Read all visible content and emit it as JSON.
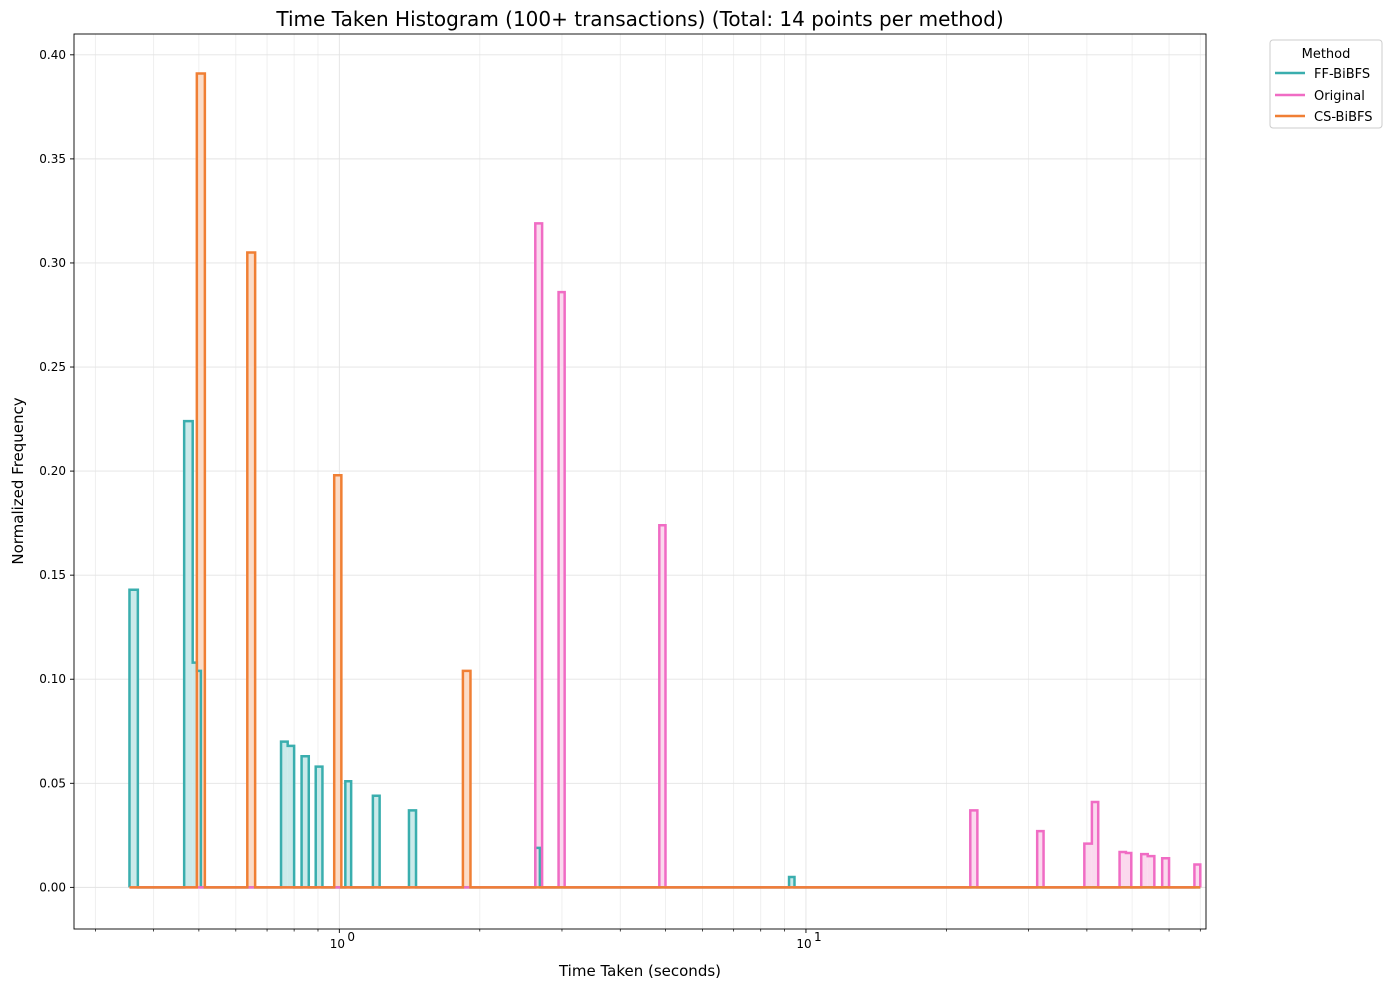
{
  "chart_data": {
    "type": "histogram-step",
    "title": "Time Taken Histogram (100+ transactions) (Total: 14 points per method)",
    "xlabel": "Time Taken (seconds)",
    "ylabel": "Normalized Frequency",
    "xscale": "log",
    "xlim": [
      0.27,
      72
    ],
    "ylim": [
      -0.02,
      0.41
    ],
    "x_ticks": [
      {
        "value": 1,
        "label": "10",
        "sup": "0"
      },
      {
        "value": 10,
        "label": "10",
        "sup": "1"
      }
    ],
    "y_ticks": [
      "0.00",
      "0.05",
      "0.10",
      "0.15",
      "0.20",
      "0.25",
      "0.30",
      "0.35",
      "0.40"
    ],
    "y_tick_values": [
      0,
      0.05,
      0.1,
      0.15,
      0.2,
      0.25,
      0.3,
      0.35,
      0.4
    ],
    "grid": true,
    "legend": {
      "title": "Method",
      "placement": "outside top-right"
    },
    "baseline_range": [
      0.355,
      70
    ],
    "series": [
      {
        "name": "FF-BiBFS",
        "color": "#3aaeae",
        "fill": "#c5e8e8",
        "bars": [
          {
            "x0": 0.355,
            "x1": 0.37,
            "y": 0.143
          },
          {
            "x0": 0.465,
            "x1": 0.485,
            "y": 0.224
          },
          {
            "x0": 0.485,
            "x1": 0.495,
            "y": 0.108
          },
          {
            "x0": 0.495,
            "x1": 0.505,
            "y": 0.104
          },
          {
            "x0": 0.75,
            "x1": 0.775,
            "y": 0.07
          },
          {
            "x0": 0.775,
            "x1": 0.8,
            "y": 0.068
          },
          {
            "x0": 0.83,
            "x1": 0.86,
            "y": 0.063
          },
          {
            "x0": 0.89,
            "x1": 0.92,
            "y": 0.058
          },
          {
            "x0": 1.03,
            "x1": 1.06,
            "y": 0.051
          },
          {
            "x0": 1.18,
            "x1": 1.22,
            "y": 0.044
          },
          {
            "x0": 1.41,
            "x1": 1.46,
            "y": 0.037
          },
          {
            "x0": 2.63,
            "x1": 2.69,
            "y": 0.019
          },
          {
            "x0": 9.2,
            "x1": 9.45,
            "y": 0.005
          }
        ]
      },
      {
        "name": "Original",
        "color": "#f06cc4",
        "fill": "#fbd5ec",
        "bars": [
          {
            "x0": 2.63,
            "x1": 2.72,
            "y": 0.319
          },
          {
            "x0": 2.95,
            "x1": 3.04,
            "y": 0.286
          },
          {
            "x0": 4.85,
            "x1": 5.0,
            "y": 0.174
          },
          {
            "x0": 22.5,
            "x1": 23.3,
            "y": 0.037
          },
          {
            "x0": 31.3,
            "x1": 32.3,
            "y": 0.027
          },
          {
            "x0": 39.5,
            "x1": 41.0,
            "y": 0.021
          },
          {
            "x0": 41.0,
            "x1": 42.3,
            "y": 0.041
          },
          {
            "x0": 47.0,
            "x1": 48.5,
            "y": 0.017
          },
          {
            "x0": 48.5,
            "x1": 49.8,
            "y": 0.0165
          },
          {
            "x0": 52.3,
            "x1": 54.0,
            "y": 0.016
          },
          {
            "x0": 54.0,
            "x1": 55.8,
            "y": 0.015
          },
          {
            "x0": 58.0,
            "x1": 60.0,
            "y": 0.014
          },
          {
            "x0": 68.0,
            "x1": 70.0,
            "y": 0.011
          }
        ]
      },
      {
        "name": "CS-BiBFS",
        "color": "#f07f34",
        "fill": "#fbd8c2",
        "bars": [
          {
            "x0": 0.495,
            "x1": 0.515,
            "y": 0.391
          },
          {
            "x0": 0.635,
            "x1": 0.66,
            "y": 0.305
          },
          {
            "x0": 0.975,
            "x1": 1.01,
            "y": 0.198
          },
          {
            "x0": 1.84,
            "x1": 1.91,
            "y": 0.104
          }
        ]
      }
    ]
  }
}
